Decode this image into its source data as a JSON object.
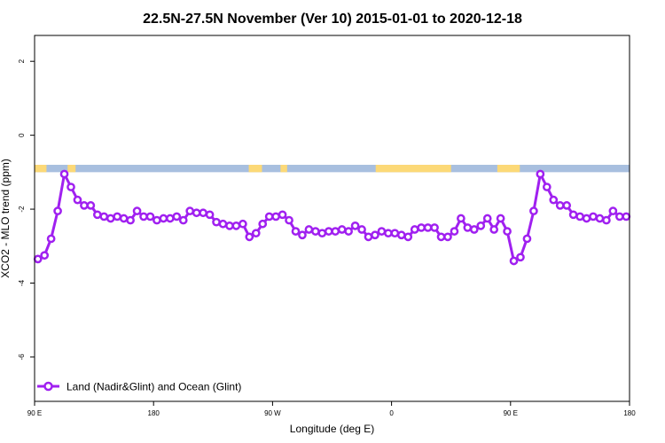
{
  "chart_data": {
    "type": "line",
    "title": "22.5N-27.5N November (Ver 10)   2015-01-01 to 2020-12-18",
    "xlabel": "Longitude (deg E)",
    "ylabel": "XCO2 - MLO trend (ppm)",
    "xlim": [
      90,
      540
    ],
    "ylim": [
      -7.2,
      2.7
    ],
    "x_ticks": [
      {
        "value": 90,
        "label": "90 E"
      },
      {
        "value": 180,
        "label": "180"
      },
      {
        "value": 270,
        "label": "90 W"
      },
      {
        "value": 360,
        "label": "0"
      },
      {
        "value": 450,
        "label": "90 E"
      },
      {
        "value": 540,
        "label": "180"
      }
    ],
    "y_ticks": [
      {
        "value": 2,
        "label": "2"
      },
      {
        "value": 0,
        "label": "0"
      },
      {
        "value": -2,
        "label": "-2"
      },
      {
        "value": -4,
        "label": "-4"
      },
      {
        "value": -6,
        "label": "-6"
      }
    ],
    "grid": false,
    "legend_position": "bottom-left",
    "land_ocean_band": {
      "y_range": [
        -1.0,
        -0.8
      ],
      "ocean_color": "#a8bfdf",
      "land_color": "#fcd977",
      "land_segments": [
        [
          90,
          99
        ],
        [
          115,
          121
        ],
        [
          252,
          262
        ],
        [
          276,
          281
        ],
        [
          348,
          405
        ],
        [
          440,
          457
        ]
      ]
    },
    "series": [
      {
        "name": "Land (Nadir&Glint) and Ocean (Glint)",
        "color": "#a020f0",
        "x": [
          92.5,
          97.5,
          102.5,
          107.5,
          112.5,
          117.5,
          122.5,
          127.5,
          132.5,
          137.5,
          142.5,
          147.5,
          152.5,
          157.5,
          162.5,
          167.5,
          172.5,
          177.5,
          182.5,
          187.5,
          192.5,
          197.5,
          202.5,
          207.5,
          212.5,
          217.5,
          222.5,
          227.5,
          232.5,
          237.5,
          242.5,
          247.5,
          252.5,
          257.5,
          262.5,
          267.5,
          272.5,
          277.5,
          282.5,
          287.5,
          292.5,
          297.5,
          302.5,
          307.5,
          312.5,
          317.5,
          322.5,
          327.5,
          332.5,
          337.5,
          342.5,
          347.5,
          352.5,
          357.5,
          362.5,
          367.5,
          372.5,
          377.5,
          382.5,
          387.5,
          392.5,
          397.5,
          402.5,
          407.5,
          412.5,
          417.5,
          422.5,
          427.5,
          432.5,
          437.5,
          442.5,
          447.5,
          452.5,
          457.5,
          462.5,
          467.5,
          472.5,
          477.5,
          482.5,
          487.5,
          492.5,
          497.5,
          502.5,
          507.5,
          512.5,
          517.5,
          522.5,
          527.5,
          532.5,
          537.5
        ],
        "values": [
          -3.35,
          -3.25,
          -2.8,
          -2.05,
          -1.05,
          -1.4,
          -1.75,
          -1.9,
          -1.9,
          -2.15,
          -2.2,
          -2.25,
          -2.2,
          -2.25,
          -2.3,
          -2.05,
          -2.2,
          -2.2,
          -2.3,
          -2.25,
          -2.25,
          -2.2,
          -2.3,
          -2.05,
          -2.1,
          -2.1,
          -2.15,
          -2.35,
          -2.4,
          -2.45,
          -2.45,
          -2.4,
          -2.75,
          -2.65,
          -2.4,
          -2.2,
          -2.2,
          -2.15,
          -2.3,
          -2.6,
          -2.7,
          -2.55,
          -2.6,
          -2.65,
          -2.6,
          -2.6,
          -2.55,
          -2.6,
          -2.45,
          -2.55,
          -2.75,
          -2.7,
          -2.6,
          -2.65,
          -2.65,
          -2.7,
          -2.75,
          -2.55,
          -2.5,
          -2.5,
          -2.5,
          -2.75,
          -2.75,
          -2.6,
          -2.25,
          -2.5,
          -2.55,
          -2.45,
          -2.25,
          -2.55,
          -2.25,
          -2.6,
          -3.4,
          -3.3,
          -2.8,
          -2.05,
          -1.05,
          -1.4,
          -1.75,
          -1.9,
          -1.9,
          -2.15,
          -2.2,
          -2.25,
          -2.2,
          -2.25,
          -2.3,
          -2.05,
          -2.2,
          -2.2
        ]
      }
    ]
  }
}
